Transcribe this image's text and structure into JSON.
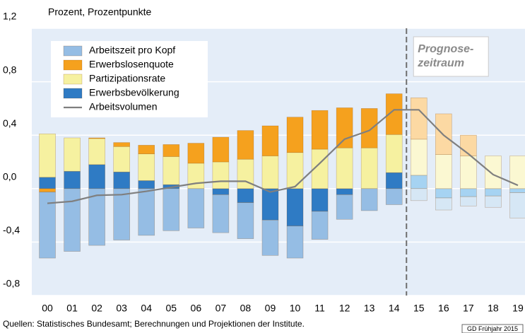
{
  "chart_data": {
    "type": "bar",
    "subtitle": "Prozent, Prozentpunkte",
    "source": "Quellen: Statistisches Bundesamt; Berechnungen und Projektionen der Institute.",
    "credit": "GD Frühjahr 2015",
    "annotation": [
      "Prognose-",
      "zeitraum"
    ],
    "forecast_from": "15",
    "categories": [
      "00",
      "01",
      "02",
      "03",
      "04",
      "05",
      "06",
      "07",
      "08",
      "09",
      "10",
      "11",
      "12",
      "13",
      "14",
      "15",
      "16",
      "17",
      "18",
      "19"
    ],
    "ylim": [
      -0.8,
      1.2
    ],
    "yticks": [
      {
        "value": -0.8,
        "label": "-0,8"
      },
      {
        "value": -0.4,
        "label": "-0,4"
      },
      {
        "value": 0,
        "label": "0,0"
      },
      {
        "value": 0.4,
        "label": "0,4"
      },
      {
        "value": 0.8,
        "label": "0,8"
      },
      {
        "value": 1.2,
        "label": "1,2"
      }
    ],
    "grid": true,
    "legend": "upper left",
    "series": [
      {
        "name": "Arbeitszeit pro Kopf",
        "color": "#95bde4",
        "forecast_color": "#d6e7f5",
        "values": [
          -0.495,
          -0.47,
          -0.425,
          -0.385,
          -0.35,
          -0.315,
          -0.295,
          -0.285,
          -0.27,
          -0.265,
          -0.24,
          -0.21,
          -0.185,
          -0.165,
          -0.12,
          -0.09,
          -0.09,
          -0.07,
          -0.085,
          -0.19
        ]
      },
      {
        "name": "Erwerbslosenquote",
        "color": "#f5a11e",
        "forecast_color": "#fcd9a3",
        "values": [
          -0.025,
          0,
          0.005,
          0.03,
          0.065,
          0.09,
          0.15,
          0.185,
          0.215,
          0.225,
          0.265,
          0.29,
          0.3,
          0.295,
          0.305,
          0.31,
          0.305,
          0.155,
          0,
          0
        ]
      },
      {
        "name": "Partizipationsrate",
        "color": "#f6f1a0",
        "forecast_color": "#fbf8d2",
        "values": [
          0.325,
          0.25,
          0.195,
          0.19,
          0.2,
          0.21,
          0.19,
          0.2,
          0.22,
          0.245,
          0.27,
          0.295,
          0.305,
          0.305,
          0.285,
          0.27,
          0.255,
          0.245,
          0.245,
          0.245
        ]
      },
      {
        "name": "Erwerbsbevölkerung",
        "color": "#2f7bc4",
        "forecast_color": "#a6d3f2",
        "values": [
          0.085,
          0.13,
          0.18,
          0.125,
          0.06,
          0.03,
          0,
          -0.045,
          -0.105,
          -0.235,
          -0.28,
          -0.17,
          -0.045,
          0,
          0.12,
          0.1,
          -0.07,
          -0.06,
          -0.055,
          -0.03
        ]
      }
    ],
    "line": {
      "name": "Arbeitsvolumen",
      "color": "#7f7f7f",
      "values": [
        -0.11,
        -0.095,
        -0.05,
        -0.045,
        -0.02,
        0.01,
        0.04,
        0.055,
        0.055,
        -0.025,
        0.015,
        0.19,
        0.37,
        0.435,
        0.59,
        0.59,
        0.4,
        0.26,
        0.105,
        0.025
      ]
    }
  }
}
